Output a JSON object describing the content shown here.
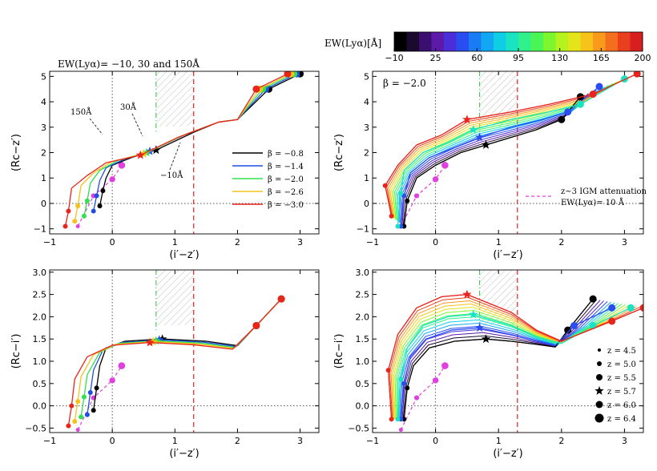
{
  "colorbar": {
    "label": "EW(Lyα)[Å]",
    "ticks": [
      "−10",
      "25",
      "60",
      "95",
      "130",
      "165",
      "200"
    ],
    "colors": [
      "#000000",
      "#1a0a2e",
      "#3b0f6f",
      "#5b1aa8",
      "#4a2fd9",
      "#2a4df0",
      "#1a7cf5",
      "#12a7f2",
      "#10cde6",
      "#19e3c0",
      "#2ff08a",
      "#4af656",
      "#7cf72f",
      "#b5f21e",
      "#e3e51a",
      "#f7c21a",
      "#f89a1c",
      "#f46f1d",
      "#e8401f",
      "#d81f1f"
    ]
  },
  "series_colors": {
    "-0.8": "#000000",
    "-1.4": "#1f4fe0",
    "-2.0": "#30e050",
    "-2.6": "#f4c21a",
    "-3.0": "#e8251c"
  },
  "chart_data": [
    {
      "type": "line",
      "title": "EW(Lyα)= −10, 30 and 150Å",
      "xlabel": "(i′−z′)",
      "ylabel": "(Rc−z′)",
      "xlim": [
        -1,
        3.3
      ],
      "ylim": [
        -1.2,
        5.2
      ],
      "xticks": [
        "−1",
        "0",
        "1",
        "2",
        "3"
      ],
      "yticks": [
        "−1",
        "0",
        "1",
        "2",
        "3",
        "4",
        "5"
      ],
      "legend": [
        {
          "label": "β = −0.8",
          "key": "-0.8"
        },
        {
          "label": "β = −1.4",
          "key": "-1.4"
        },
        {
          "label": "β = −2.0",
          "key": "-2.0"
        },
        {
          "label": "β = −2.6",
          "key": "-2.6"
        },
        {
          "label": "β = −3.0",
          "key": "-3.0"
        }
      ],
      "annotations": [
        "150Å",
        "30Å",
        "−10Å"
      ],
      "series": [
        {
          "name": "β = −0.8",
          "x": [
            -0.2,
            -0.15,
            -0.1,
            0.0,
            0.3,
            0.7,
            1.3,
            1.7,
            2.0,
            2.5,
            3.0
          ],
          "y": [
            -0.1,
            0.5,
            1.0,
            1.5,
            1.8,
            2.1,
            2.8,
            3.2,
            3.3,
            4.5,
            5.1
          ]
        },
        {
          "name": "β = −1.4",
          "x": [
            -0.3,
            -0.25,
            -0.2,
            -0.1,
            0.2,
            0.6,
            1.2,
            1.7,
            2.0,
            2.45,
            2.95
          ],
          "y": [
            -0.3,
            0.3,
            0.9,
            1.4,
            1.75,
            2.05,
            2.75,
            3.2,
            3.3,
            4.5,
            5.1
          ]
        },
        {
          "name": "β = −2.0",
          "x": [
            -0.45,
            -0.4,
            -0.35,
            -0.2,
            0.1,
            0.55,
            1.15,
            1.7,
            2.0,
            2.4,
            2.9
          ],
          "y": [
            -0.5,
            0.1,
            0.8,
            1.3,
            1.7,
            2.0,
            2.7,
            3.2,
            3.3,
            4.5,
            5.1
          ]
        },
        {
          "name": "β = −2.6",
          "x": [
            -0.6,
            -0.55,
            -0.5,
            -0.3,
            0.0,
            0.5,
            1.1,
            1.7,
            2.0,
            2.35,
            2.85
          ],
          "y": [
            -0.7,
            -0.1,
            0.7,
            1.2,
            1.65,
            1.95,
            2.65,
            3.2,
            3.3,
            4.5,
            5.1
          ]
        },
        {
          "name": "β = −3.0",
          "x": [
            -0.75,
            -0.7,
            -0.65,
            -0.4,
            -0.1,
            0.45,
            1.05,
            1.7,
            2.0,
            2.3,
            2.8
          ],
          "y": [
            -0.9,
            -0.3,
            0.6,
            1.1,
            1.6,
            1.9,
            2.6,
            3.2,
            3.3,
            4.5,
            5.1
          ]
        }
      ]
    },
    {
      "type": "line",
      "title": "β = −2.0",
      "xlabel": "(i′−z′)",
      "ylabel": "(Rc−z′)",
      "xlim": [
        -1,
        3.3
      ],
      "ylim": [
        -1.2,
        5.2
      ],
      "xticks": [
        "−1",
        "0",
        "1",
        "2",
        "3"
      ],
      "yticks": [
        "−1",
        "0",
        "1",
        "2",
        "3",
        "4",
        "5"
      ],
      "annotations": [
        "z~3 IGM attenuation",
        "EW(Lyα)= 10 Å"
      ],
      "series": [
        {
          "name": "EW −10",
          "x": [
            -0.5,
            -0.45,
            -0.3,
            0.0,
            0.4,
            0.8,
            1.2,
            1.6,
            2.0,
            2.3
          ],
          "y": [
            -0.9,
            0.1,
            1.0,
            1.5,
            2.0,
            2.3,
            2.6,
            2.9,
            3.3,
            4.2
          ]
        },
        {
          "name": "EW 60",
          "x": [
            -0.55,
            -0.5,
            -0.4,
            -0.1,
            0.3,
            0.7,
            1.2,
            1.7,
            2.1,
            2.6
          ],
          "y": [
            -0.9,
            0.3,
            1.2,
            1.8,
            2.2,
            2.6,
            3.0,
            3.3,
            3.6,
            4.6
          ]
        },
        {
          "name": "EW 130",
          "x": [
            -0.6,
            -0.55,
            -0.5,
            -0.2,
            0.2,
            0.6,
            1.2,
            1.8,
            2.3,
            3.0
          ],
          "y": [
            -0.9,
            0.4,
            1.3,
            2.0,
            2.4,
            2.9,
            3.3,
            3.6,
            3.9,
            4.9
          ]
        },
        {
          "name": "EW 200",
          "x": [
            -0.7,
            -0.8,
            -0.6,
            -0.3,
            0.1,
            0.5,
            1.2,
            1.8,
            2.5,
            3.2
          ],
          "y": [
            -0.5,
            0.7,
            1.5,
            2.3,
            2.7,
            3.3,
            3.6,
            3.9,
            4.3,
            5.1
          ]
        }
      ]
    },
    {
      "type": "line",
      "title": "",
      "xlabel": "(i′−z′)",
      "ylabel": "(Rc−i′)",
      "xlim": [
        -1,
        3.3
      ],
      "ylim": [
        -0.6,
        3.05
      ],
      "xticks": [
        "−1",
        "0",
        "1",
        "2",
        "3"
      ],
      "yticks": [
        "−0.5",
        "0.0",
        "0.5",
        "1.0",
        "1.5",
        "2.0",
        "2.5",
        "3.0"
      ],
      "series": [
        {
          "name": "β = −0.8",
          "x": [
            -0.3,
            -0.25,
            -0.2,
            -0.1,
            0.2,
            0.8,
            1.5,
            2.0,
            2.3,
            2.7
          ],
          "y": [
            -0.1,
            0.4,
            0.9,
            1.3,
            1.45,
            1.5,
            1.45,
            1.35,
            1.8,
            2.4
          ]
        },
        {
          "name": "β = −1.4",
          "x": [
            -0.4,
            -0.35,
            -0.3,
            -0.15,
            0.15,
            0.75,
            1.45,
            1.98,
            2.3,
            2.7
          ],
          "y": [
            -0.2,
            0.3,
            0.8,
            1.25,
            1.42,
            1.48,
            1.43,
            1.33,
            1.8,
            2.4
          ]
        },
        {
          "name": "β = −2.0",
          "x": [
            -0.5,
            -0.45,
            -0.4,
            -0.2,
            0.1,
            0.7,
            1.4,
            1.96,
            2.3,
            2.7
          ],
          "y": [
            -0.25,
            0.2,
            0.7,
            1.2,
            1.4,
            1.46,
            1.41,
            1.31,
            1.8,
            2.4
          ]
        },
        {
          "name": "β = −2.6",
          "x": [
            -0.6,
            -0.55,
            -0.5,
            -0.3,
            0.05,
            0.65,
            1.35,
            1.94,
            2.3,
            2.7
          ],
          "y": [
            -0.35,
            0.1,
            0.65,
            1.15,
            1.38,
            1.44,
            1.39,
            1.29,
            1.8,
            2.4
          ]
        },
        {
          "name": "β = −3.0",
          "x": [
            -0.7,
            -0.65,
            -0.6,
            -0.4,
            0.0,
            0.6,
            1.3,
            1.92,
            2.3,
            2.7
          ],
          "y": [
            -0.45,
            0.0,
            0.6,
            1.1,
            1.36,
            1.42,
            1.37,
            1.27,
            1.8,
            2.4
          ]
        }
      ]
    },
    {
      "type": "line",
      "title": "",
      "xlabel": "(i′−z′)",
      "ylabel": "(Rc−i′)",
      "xlim": [
        -1,
        3.3
      ],
      "ylim": [
        -0.6,
        3.05
      ],
      "xticks": [
        "−1",
        "0",
        "1",
        "2",
        "3"
      ],
      "yticks": [
        "−0.5",
        "0.0",
        "0.5",
        "1.0",
        "1.5",
        "2.0",
        "2.5",
        "3.0"
      ],
      "legend": [
        {
          "label": "z = 4.5",
          "marker": "dot",
          "r": 2
        },
        {
          "label": "z = 5.0",
          "marker": "dot",
          "r": 3
        },
        {
          "label": "z = 5.5",
          "marker": "dot",
          "r": 4
        },
        {
          "label": "z = 5.7",
          "marker": "star",
          "r": 6
        },
        {
          "label": "z = 6.0",
          "marker": "dot",
          "r": 4.5
        },
        {
          "label": "z = 6.4",
          "marker": "dot",
          "r": 5.5
        }
      ],
      "series": [
        {
          "name": "EW −10",
          "x": [
            -0.5,
            -0.45,
            -0.35,
            -0.1,
            0.3,
            0.8,
            1.2,
            1.6,
            1.9,
            2.1,
            2.5
          ],
          "y": [
            -0.3,
            0.4,
            0.9,
            1.3,
            1.45,
            1.5,
            1.45,
            1.38,
            1.32,
            1.7,
            2.4
          ]
        },
        {
          "name": "EW 60",
          "x": [
            -0.55,
            -0.5,
            -0.4,
            -0.15,
            0.25,
            0.7,
            1.2,
            1.6,
            1.9,
            2.2,
            2.8
          ],
          "y": [
            -0.3,
            0.5,
            1.1,
            1.5,
            1.7,
            1.75,
            1.6,
            1.45,
            1.35,
            1.8,
            2.2
          ]
        },
        {
          "name": "EW 130",
          "x": [
            -0.6,
            -0.55,
            -0.45,
            -0.2,
            0.2,
            0.6,
            1.2,
            1.6,
            2.0,
            2.5,
            3.1
          ],
          "y": [
            -0.3,
            0.6,
            1.3,
            1.8,
            2.0,
            2.05,
            1.8,
            1.55,
            1.4,
            1.8,
            2.2
          ]
        },
        {
          "name": "EW 200",
          "x": [
            -0.7,
            -0.75,
            -0.6,
            -0.3,
            0.1,
            0.5,
            1.2,
            1.6,
            2.0,
            2.8,
            3.3
          ],
          "y": [
            -0.3,
            0.8,
            1.6,
            2.2,
            2.45,
            2.5,
            2.1,
            1.7,
            1.45,
            1.9,
            2.2
          ]
        }
      ]
    }
  ]
}
